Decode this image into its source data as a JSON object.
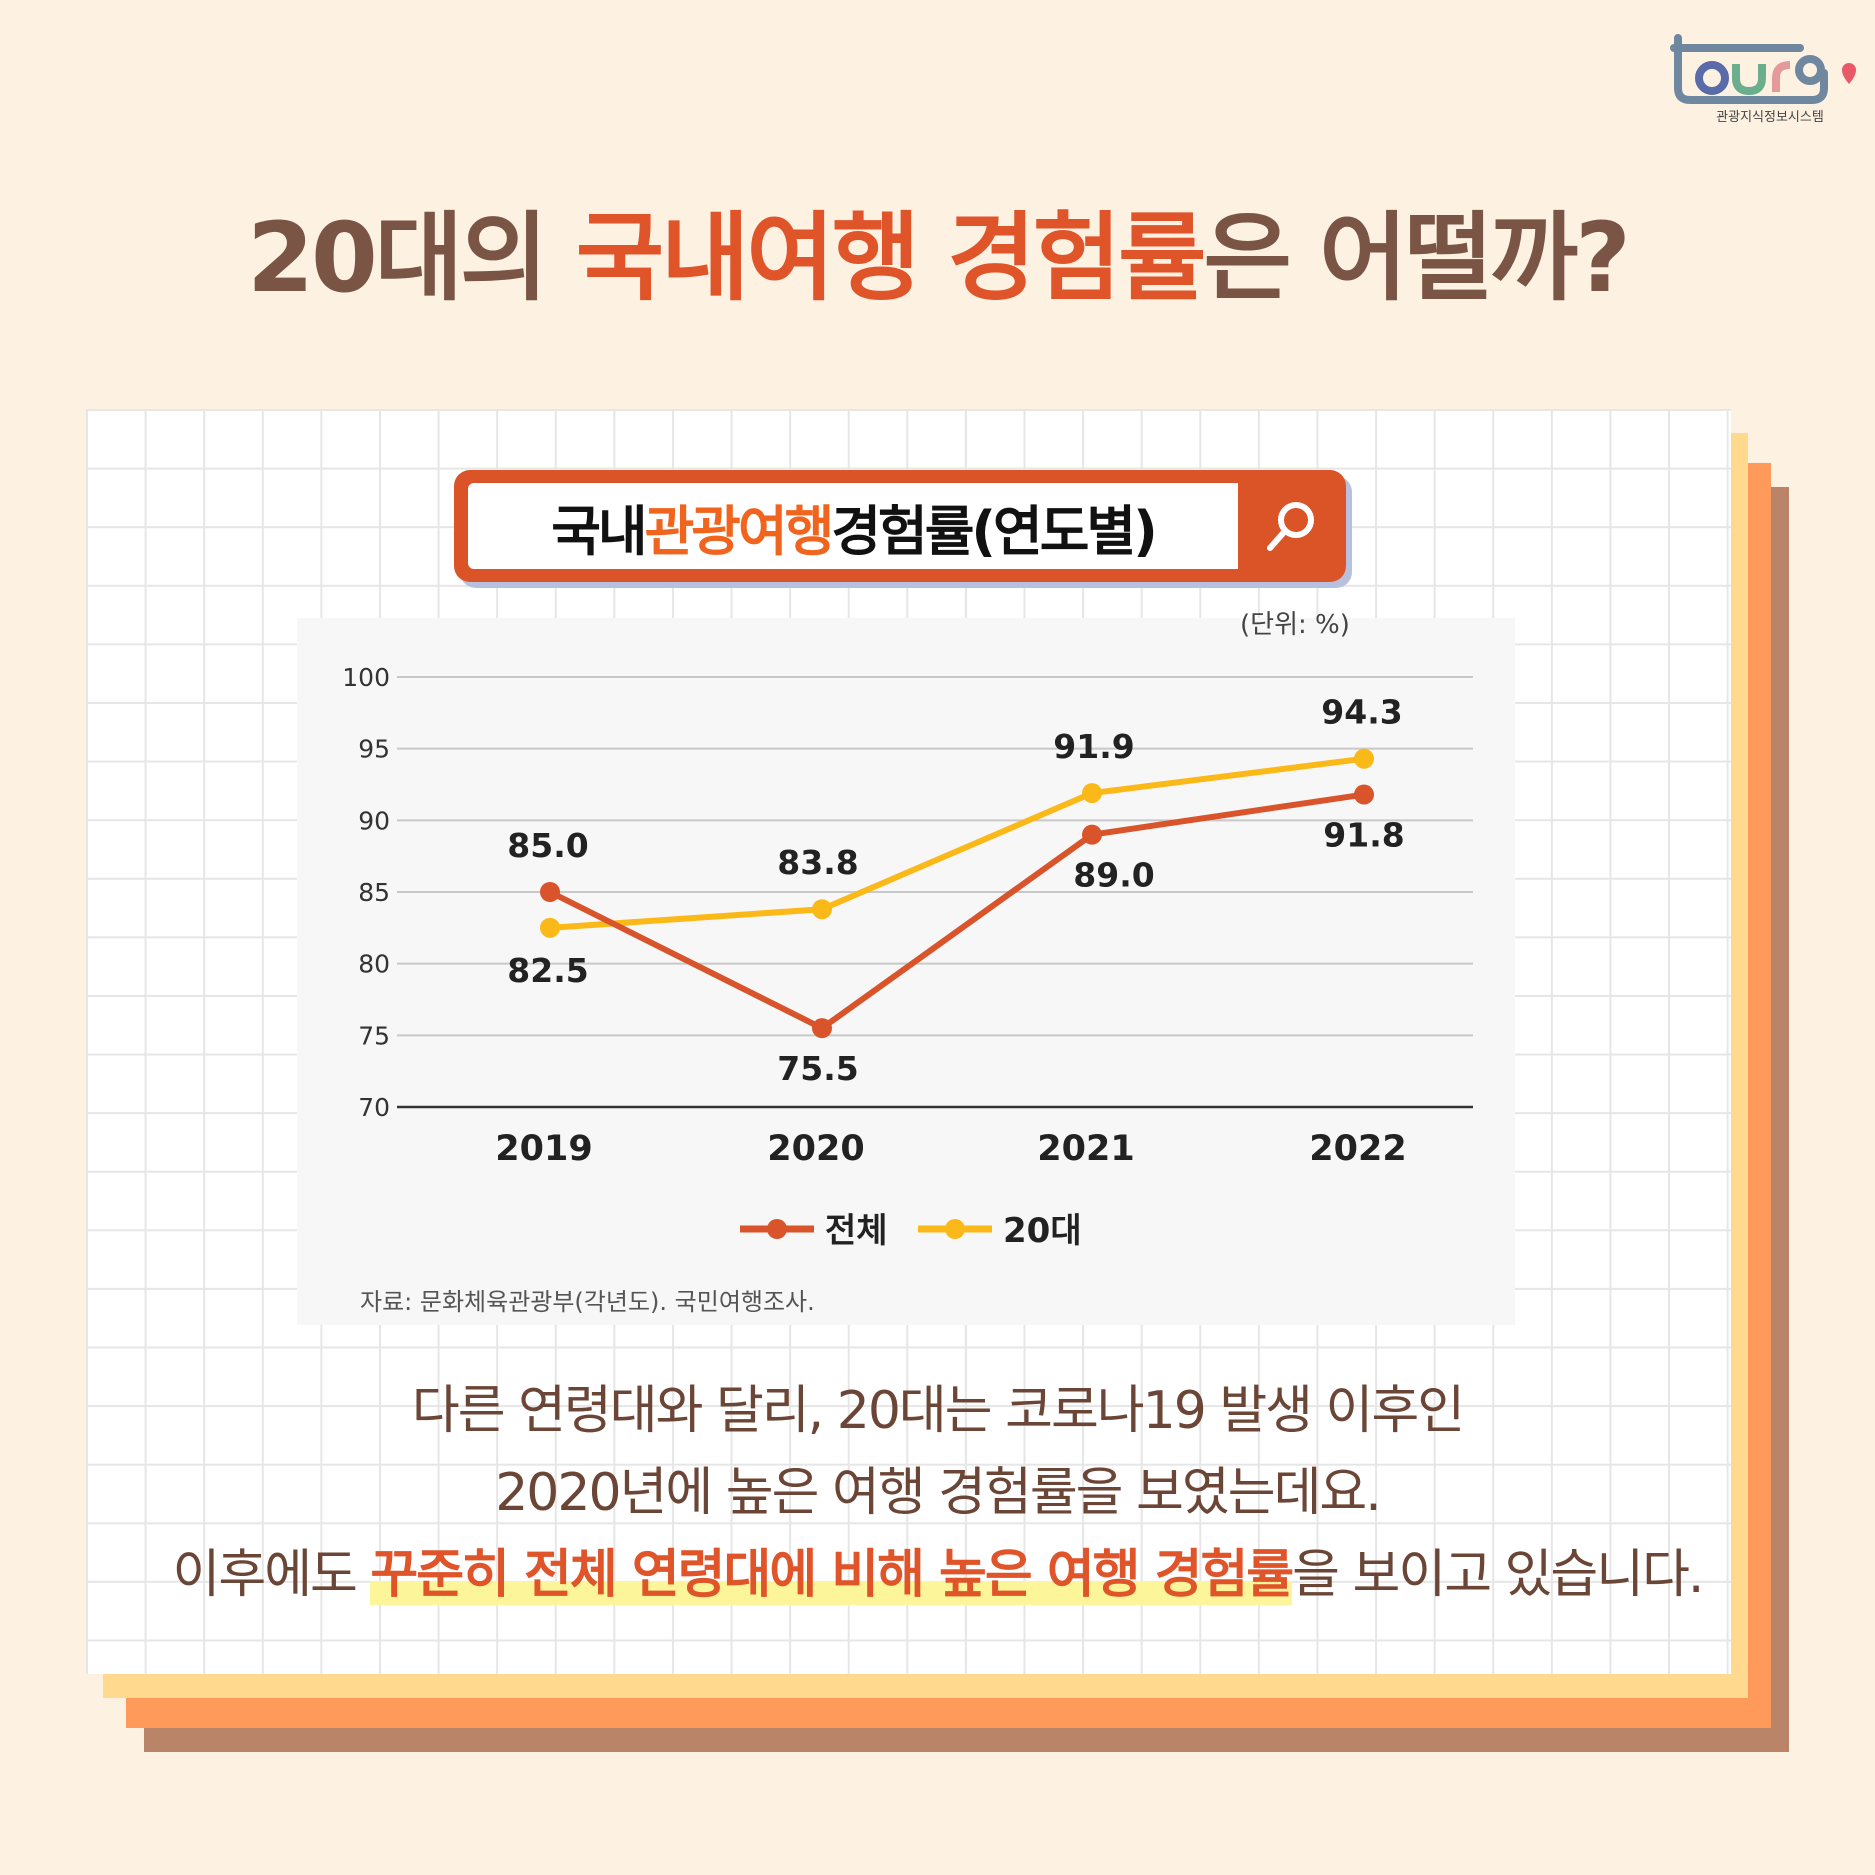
{
  "logo": {
    "text": "tour9",
    "subtitle": "관광지식정보시스템"
  },
  "title": {
    "part1": "20대의 ",
    "highlight": "국내여행 경험률",
    "part2": "은 어떨까?"
  },
  "search_box": {
    "part1": "국내 ",
    "highlight": "관광여행",
    "part2": " 경험률(연도별)",
    "icon": "search-icon"
  },
  "colors": {
    "accent": "#e0542a",
    "series_total": "#d9532b",
    "series_20s": "#fbb919",
    "title": "#7a5444"
  },
  "chart_data": {
    "type": "line",
    "unit_label": "(단위: %)",
    "categories": [
      "2019",
      "2020",
      "2021",
      "2022"
    ],
    "ylim": [
      70,
      100
    ],
    "yticks": [
      "70",
      "75",
      "80",
      "85",
      "90",
      "95",
      "100"
    ],
    "grid": true,
    "legend_placement": "bottom",
    "series": [
      {
        "name": "전체",
        "values": [
          85.0,
          75.5,
          89.0,
          91.8
        ],
        "labels": [
          "85.0",
          "75.5",
          "89.0",
          "91.8"
        ]
      },
      {
        "name": "20대",
        "values": [
          82.5,
          83.8,
          91.9,
          94.3
        ],
        "labels": [
          "82.5",
          "83.8",
          "91.9",
          "94.3"
        ]
      }
    ],
    "source": "자료: 문화체육관광부(각년도). 국민여행조사."
  },
  "body": {
    "line1": "다른 연령대와 달리, 20대는 코로나19 발생 이후인",
    "line2": "2020년에 높은 여행 경험률을 보였는데요.",
    "line3_pre": "이후에도 ",
    "line3_em": "꾸준히 전체 연령대에 비해 높은 여행 경험률",
    "line3_post": "을 보이고 있습니다."
  }
}
